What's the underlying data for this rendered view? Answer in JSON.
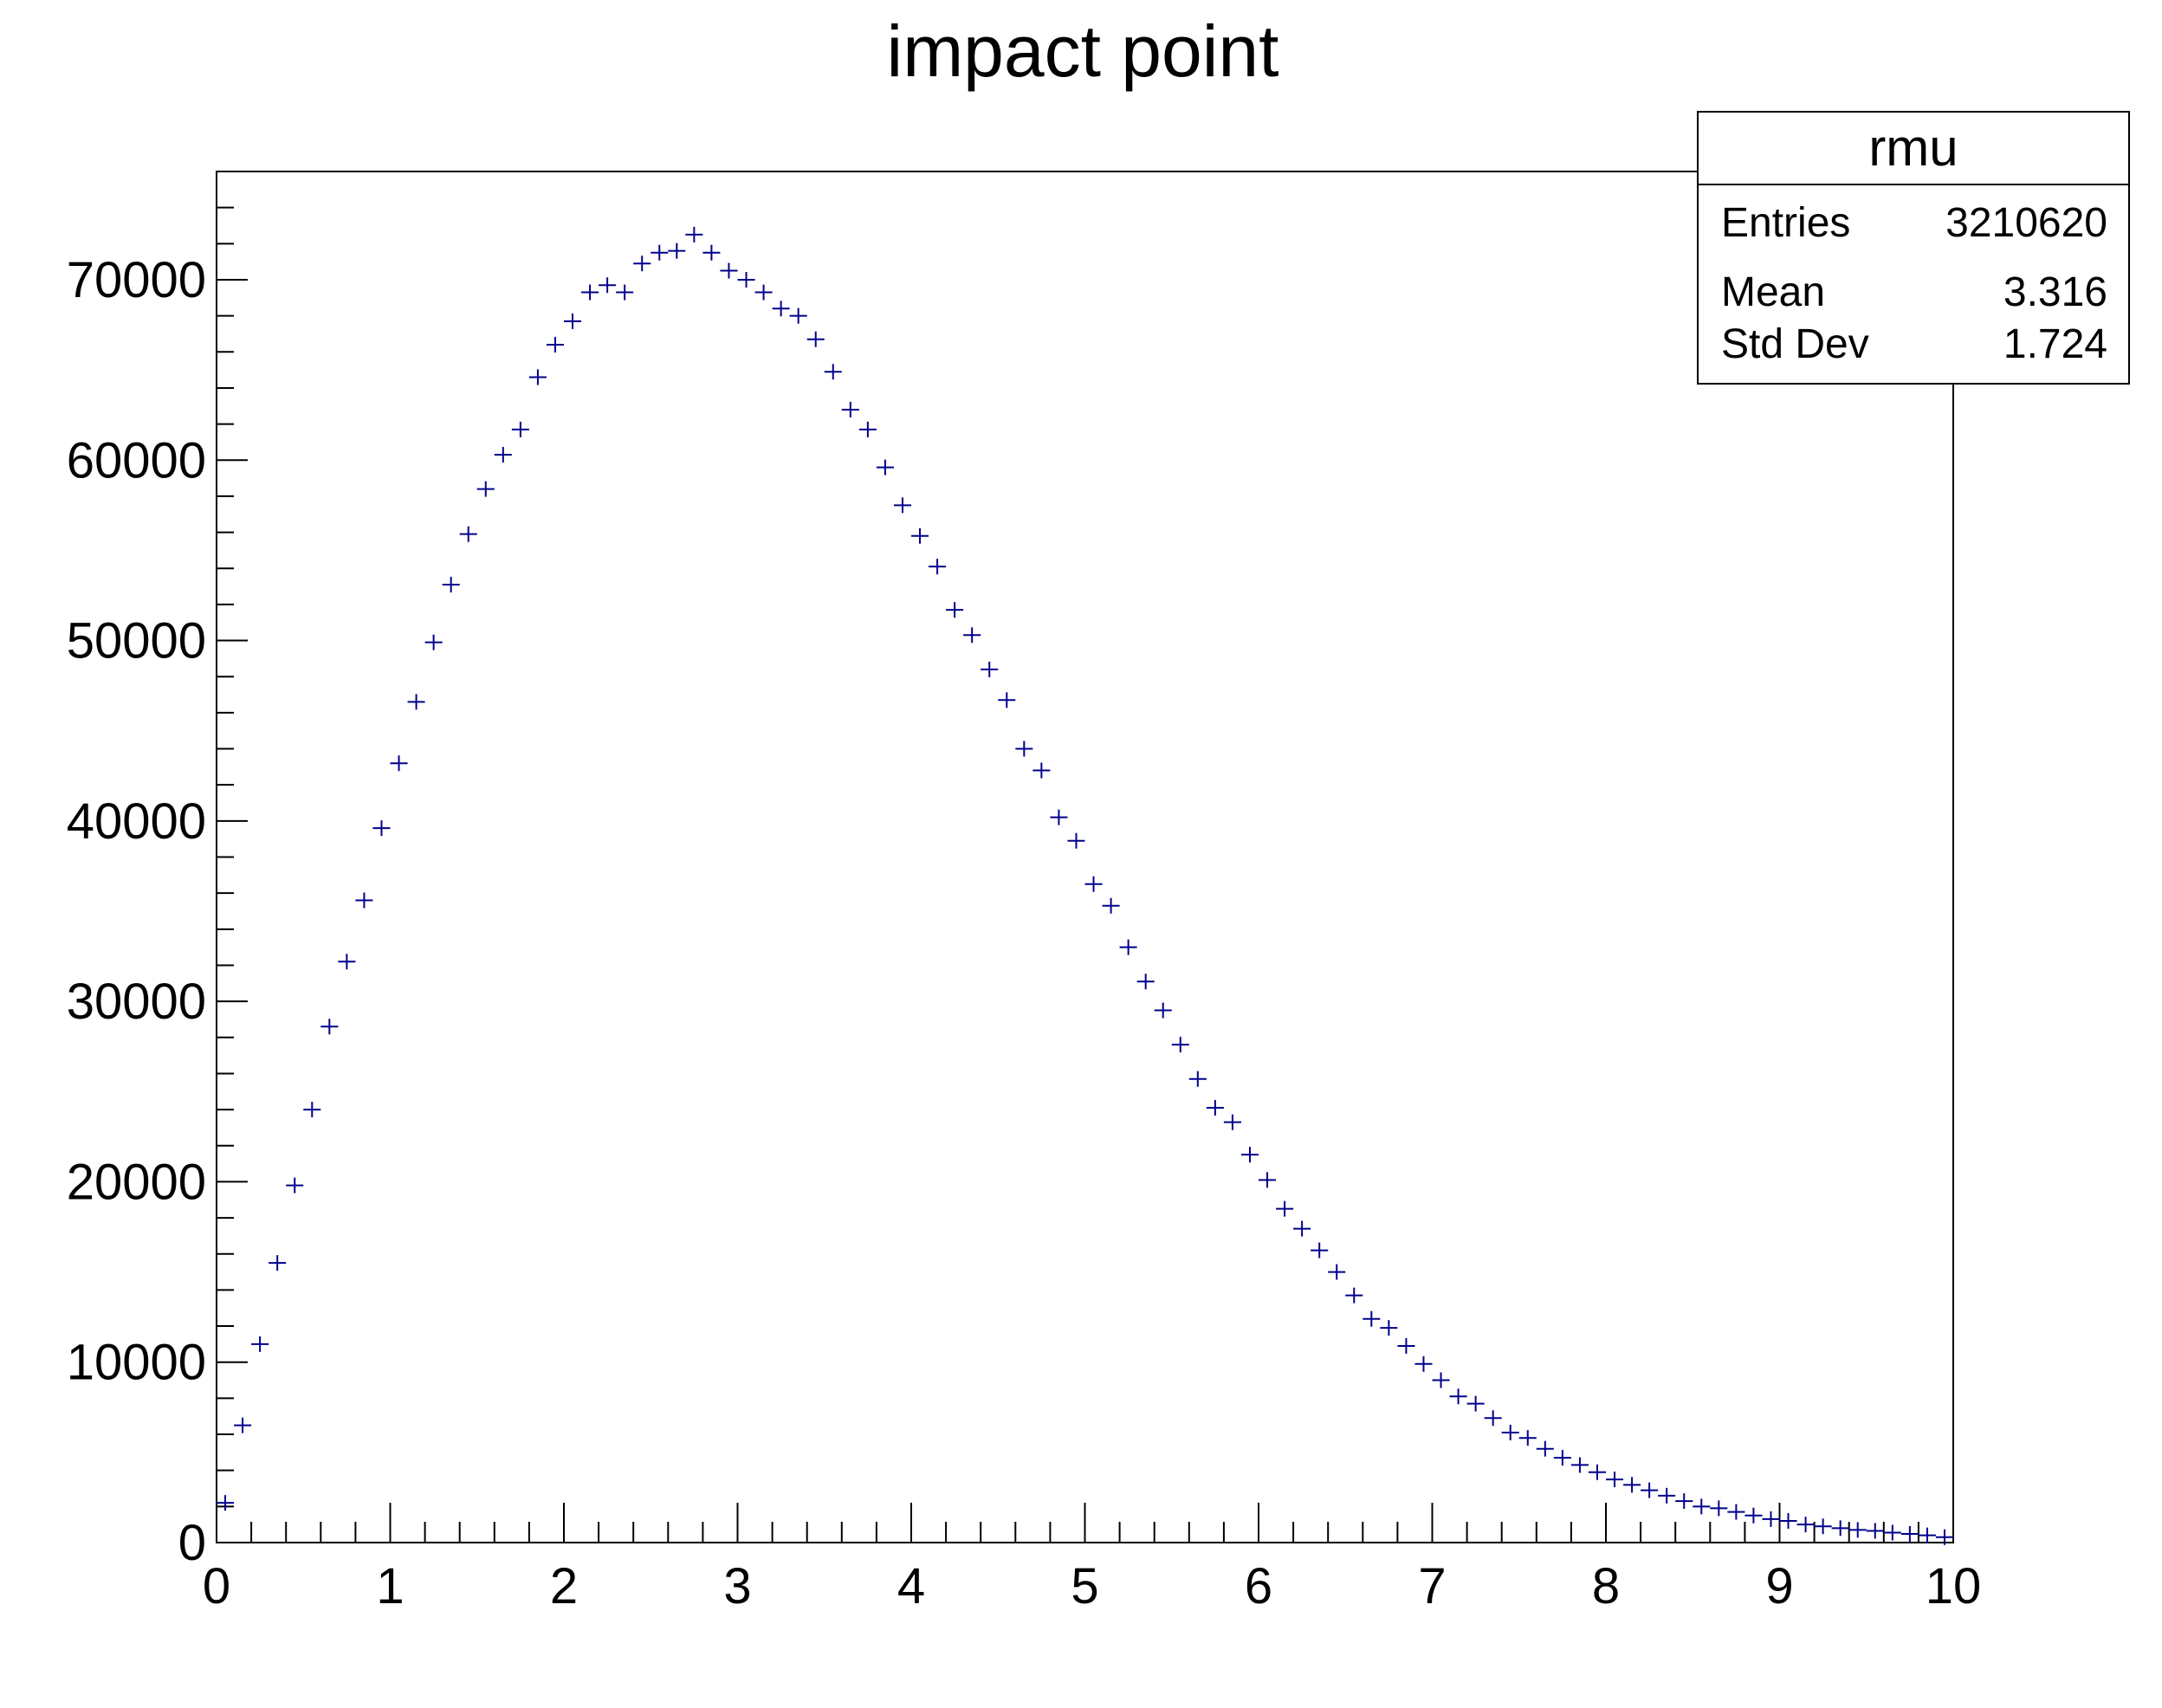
{
  "chart_data": {
    "type": "scatter",
    "title": "impact point",
    "xlabel": "",
    "ylabel": "",
    "xlim": [
      0,
      10
    ],
    "ylim": [
      0,
      76000
    ],
    "bin_width": 0.1,
    "x_ticks": [
      "0",
      "1",
      "2",
      "3",
      "4",
      "5",
      "6",
      "7",
      "8",
      "9",
      "10"
    ],
    "y_ticks": [
      "0",
      "10000",
      "20000",
      "30000",
      "40000",
      "50000",
      "60000",
      "70000"
    ],
    "x_tick_values": [
      0,
      1,
      2,
      3,
      4,
      5,
      6,
      7,
      8,
      9,
      10
    ],
    "y_tick_values": [
      0,
      10000,
      20000,
      30000,
      40000,
      50000,
      60000,
      70000
    ],
    "marker_color": "#00008b",
    "series": [
      {
        "x": [
          0.05,
          0.15,
          0.25,
          0.35,
          0.45,
          0.55,
          0.65,
          0.75,
          0.85,
          0.95,
          1.05,
          1.15,
          1.25,
          1.35,
          1.45,
          1.55,
          1.65,
          1.75,
          1.85,
          1.95,
          2.05,
          2.15,
          2.25,
          2.35,
          2.45,
          2.55,
          2.65,
          2.75,
          2.85,
          2.95,
          3.05,
          3.15,
          3.25,
          3.35,
          3.45,
          3.55,
          3.65,
          3.75,
          3.85,
          3.95,
          4.05,
          4.15,
          4.25,
          4.35,
          4.45,
          4.55,
          4.65,
          4.75,
          4.85,
          4.95,
          5.05,
          5.15,
          5.25,
          5.35,
          5.45,
          5.55,
          5.65,
          5.75,
          5.85,
          5.95,
          6.05,
          6.15,
          6.25,
          6.35,
          6.45,
          6.55,
          6.65,
          6.75,
          6.85,
          6.95,
          7.05,
          7.15,
          7.25,
          7.35,
          7.45,
          7.55,
          7.65,
          7.75,
          7.85,
          7.95,
          8.05,
          8.15,
          8.25,
          8.35,
          8.45,
          8.55,
          8.65,
          8.75,
          8.85,
          8.95,
          9.05,
          9.15,
          9.25,
          9.35,
          9.45,
          9.55,
          9.65,
          9.75,
          9.85,
          9.95
        ],
        "values": [
          2200,
          6500,
          11000,
          15500,
          19800,
          24000,
          28600,
          32200,
          35600,
          39600,
          43200,
          46600,
          49900,
          53100,
          55900,
          58400,
          60300,
          61700,
          64600,
          66400,
          67700,
          69300,
          69700,
          69300,
          70900,
          71500,
          71600,
          72500,
          71500,
          70500,
          70000,
          69300,
          68400,
          68000,
          66700,
          64900,
          62800,
          61700,
          59600,
          57500,
          55800,
          54100,
          51700,
          50300,
          48400,
          46700,
          44000,
          42800,
          40200,
          38900,
          36500,
          35300,
          33000,
          31100,
          29500,
          27600,
          25700,
          24100,
          23300,
          21500,
          20100,
          18500,
          17400,
          16200,
          15000,
          13700,
          12400,
          11900,
          10900,
          9900,
          9000,
          8100,
          7700,
          6900,
          6100,
          5800,
          5200,
          4700,
          4300,
          3900,
          3500,
          3200,
          2900,
          2600,
          2300,
          2000,
          1900,
          1700,
          1500,
          1300,
          1200,
          1000,
          900,
          800,
          700,
          650,
          550,
          480,
          400,
          300
        ]
      }
    ]
  },
  "stats": {
    "name": "rmu",
    "rows": [
      {
        "label": "Entries",
        "value": "3210620"
      },
      {
        "label": "Mean",
        "value": "3.316"
      },
      {
        "label": "Std Dev",
        "value": "1.724"
      }
    ]
  }
}
